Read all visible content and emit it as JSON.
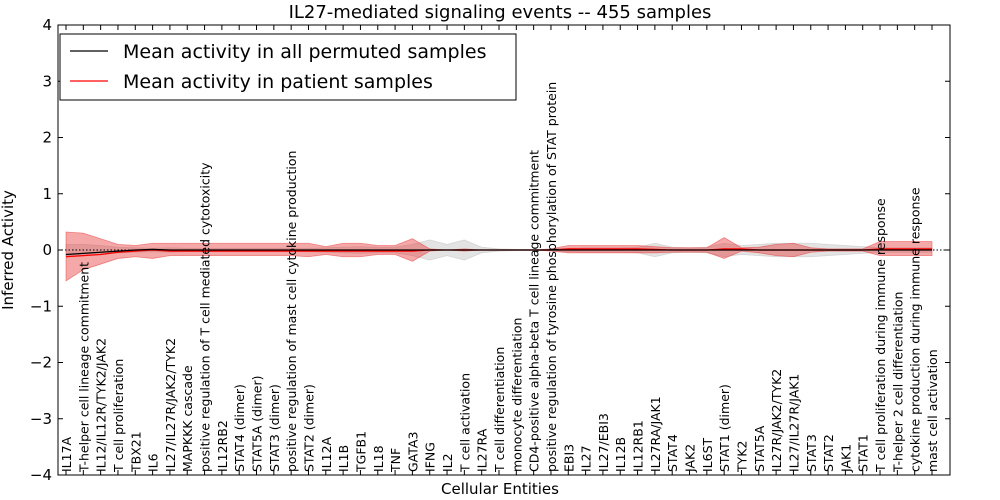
{
  "chart_data": {
    "type": "line",
    "title": "IL27-mediated signaling events -- 455 samples",
    "xlabel": "Cellular Entities",
    "ylabel": "Inferred Activity",
    "ylim": [
      -4,
      4
    ],
    "yticks": [
      -4,
      -3,
      -2,
      -1,
      0,
      1,
      2,
      3,
      4
    ],
    "legend": {
      "placement": "top-left",
      "entries": [
        {
          "label": "Mean activity in all permuted samples",
          "color": "#000000"
        },
        {
          "label": "Mean activity in patient samples",
          "color": "#ff0000"
        }
      ]
    },
    "categories": [
      "IL17A",
      "T-helper cell lineage commitment",
      "IL12/IL12R/TYK2/JAK2",
      "T cell proliferation",
      "TBX21",
      "IL6",
      "IL27/IL27R/JAK2/TYK2",
      "MAPKKK cascade",
      "positive regulation of T cell mediated cytotoxicity",
      "IL12RB2",
      "STAT4 (dimer)",
      "STAT5A (dimer)",
      "STAT3 (dimer)",
      "positive regulation of mast cell cytokine production",
      "STAT2 (dimer)",
      "IL12A",
      "IL1B",
      "TGFB1",
      "IL18",
      "TNF",
      "GATA3",
      "IFNG",
      "IL2",
      "T cell activation",
      "IL27RA",
      "T cell differentiation",
      "monocyte differentiation",
      "CD4-positive alpha-beta T cell lineage commitment",
      "positive regulation of tyrosine phosphorylation of STAT protein",
      "EBI3",
      "IL27",
      "IL27/EBI3",
      "IL12B",
      "IL12RB1",
      "IL27RA/JAK1",
      "STAT4",
      "JAK2",
      "IL6ST",
      "STAT1 (dimer)",
      "TYK2",
      "STAT5A",
      "IL27R/JAK2/TYK2",
      "IL27/IL27R/JAK1",
      "STAT3",
      "STAT2",
      "JAK1",
      "STAT1",
      "T cell proliferation during immune response",
      "T-helper 2 cell differentiation",
      "cytokine production during immune response",
      "mast cell activation"
    ],
    "series": [
      {
        "name": "Mean activity in all permuted samples",
        "color": "#000000",
        "values": [
          -0.08,
          -0.06,
          -0.04,
          -0.02,
          0.0,
          0.01,
          0.0,
          0.0,
          0.0,
          0.0,
          0.0,
          0.0,
          0.0,
          0.0,
          0.0,
          0.0,
          0.0,
          0.0,
          0.0,
          0.0,
          0.0,
          0.0,
          0.0,
          0.0,
          0.0,
          0.0,
          0.0,
          0.0,
          0.0,
          0.0,
          0.0,
          0.0,
          0.0,
          0.0,
          0.0,
          0.0,
          0.0,
          0.0,
          0.0,
          0.0,
          0.0,
          0.0,
          0.0,
          0.0,
          0.0,
          0.0,
          0.0,
          0.0,
          0.0,
          0.0,
          0.0
        ],
        "band_low": [
          -0.1,
          -0.1,
          -0.08,
          -0.05,
          -0.04,
          -0.03,
          -0.04,
          -0.03,
          -0.03,
          -0.03,
          -0.03,
          -0.03,
          -0.03,
          -0.03,
          -0.03,
          -0.04,
          -0.05,
          -0.06,
          -0.05,
          -0.05,
          -0.1,
          -0.18,
          -0.1,
          -0.18,
          -0.05,
          -0.02,
          -0.01,
          -0.01,
          -0.01,
          -0.03,
          -0.04,
          -0.04,
          -0.04,
          -0.05,
          -0.12,
          -0.05,
          -0.04,
          -0.05,
          -0.12,
          -0.08,
          -0.1,
          -0.12,
          -0.12,
          -0.12,
          -0.1,
          -0.08,
          -0.06,
          -0.04,
          -0.04,
          -0.04,
          -0.04
        ],
        "band_high": [
          0.1,
          0.1,
          0.08,
          0.05,
          0.04,
          0.03,
          0.04,
          0.03,
          0.03,
          0.03,
          0.03,
          0.03,
          0.03,
          0.03,
          0.03,
          0.04,
          0.05,
          0.06,
          0.05,
          0.05,
          0.1,
          0.18,
          0.1,
          0.18,
          0.05,
          0.02,
          0.01,
          0.01,
          0.01,
          0.03,
          0.04,
          0.04,
          0.04,
          0.05,
          0.12,
          0.05,
          0.04,
          0.05,
          0.12,
          0.08,
          0.1,
          0.12,
          0.12,
          0.12,
          0.1,
          0.08,
          0.06,
          0.04,
          0.04,
          0.04,
          0.04
        ]
      },
      {
        "name": "Mean activity in patient samples",
        "color": "#ff0000",
        "values": [
          -0.12,
          -0.1,
          -0.08,
          -0.04,
          -0.02,
          0.0,
          -0.02,
          -0.02,
          -0.02,
          -0.02,
          -0.02,
          -0.02,
          -0.02,
          -0.02,
          -0.02,
          -0.02,
          -0.02,
          -0.02,
          -0.02,
          -0.02,
          -0.02,
          0.0,
          0.0,
          0.0,
          0.0,
          0.0,
          0.0,
          0.0,
          0.0,
          0.02,
          0.02,
          0.02,
          0.02,
          0.02,
          0.01,
          0.0,
          0.0,
          0.0,
          0.02,
          0.02,
          0.0,
          0.0,
          0.0,
          0.0,
          0.0,
          0.0,
          0.0,
          0.02,
          0.02,
          0.02,
          0.02
        ],
        "band_low": [
          -0.55,
          -0.35,
          -0.25,
          -0.15,
          -0.12,
          -0.15,
          -0.1,
          -0.1,
          -0.1,
          -0.1,
          -0.1,
          -0.1,
          -0.1,
          -0.1,
          -0.12,
          -0.08,
          -0.12,
          -0.12,
          -0.08,
          -0.08,
          -0.2,
          -0.02,
          0.0,
          -0.02,
          0.0,
          0.0,
          0.0,
          0.0,
          -0.02,
          -0.05,
          -0.05,
          -0.05,
          -0.05,
          -0.05,
          -0.05,
          -0.04,
          -0.04,
          -0.04,
          -0.15,
          -0.02,
          -0.05,
          -0.1,
          -0.12,
          -0.04,
          -0.02,
          -0.02,
          -0.02,
          -0.1,
          -0.1,
          -0.1,
          -0.1
        ],
        "band_high": [
          0.32,
          0.3,
          0.2,
          0.1,
          0.08,
          0.12,
          0.12,
          0.12,
          0.12,
          0.12,
          0.12,
          0.12,
          0.12,
          0.12,
          0.12,
          0.06,
          0.12,
          0.12,
          0.08,
          0.08,
          0.2,
          0.02,
          0.0,
          0.02,
          0.0,
          0.0,
          0.0,
          0.0,
          0.02,
          0.08,
          0.08,
          0.08,
          0.08,
          0.08,
          0.06,
          0.04,
          0.04,
          0.04,
          0.22,
          0.04,
          0.05,
          0.1,
          0.12,
          0.04,
          0.02,
          0.02,
          0.02,
          0.15,
          0.15,
          0.15,
          0.15
        ]
      }
    ]
  }
}
